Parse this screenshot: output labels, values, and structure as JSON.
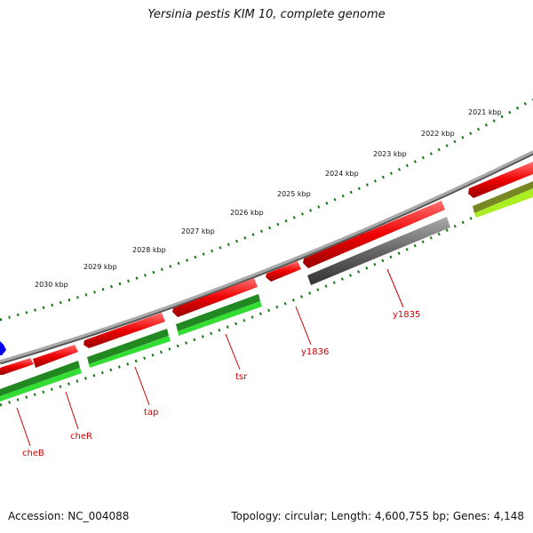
{
  "title": "Yersinia pestis KIM 10, complete genome",
  "footer": {
    "accession": "Accession: NC_004088",
    "topology": "Topology: circular; Length: 4,600,755 bp; Genes: 4,148"
  },
  "scale_labels": [
    "2030 kbp",
    "2029 kbp",
    "2028 kbp",
    "2027 kbp",
    "2026 kbp",
    "2025 kbp",
    "2024 kbp",
    "2023 kbp",
    "2022 kbp",
    "2021 kbp"
  ],
  "gene_labels": [
    "cheB",
    "cheR",
    "tap",
    "tsr",
    "y1836",
    "y1835"
  ],
  "colors": {
    "cds": "#ee0000",
    "dark_green": "#228822",
    "light_green": "#33dd33",
    "gray_feature": "#666666",
    "blue_feature": "#0000ee",
    "lime": "#aaee22",
    "backbone": "#888888",
    "scale_dots": "#117711",
    "label": "#cc0000"
  }
}
